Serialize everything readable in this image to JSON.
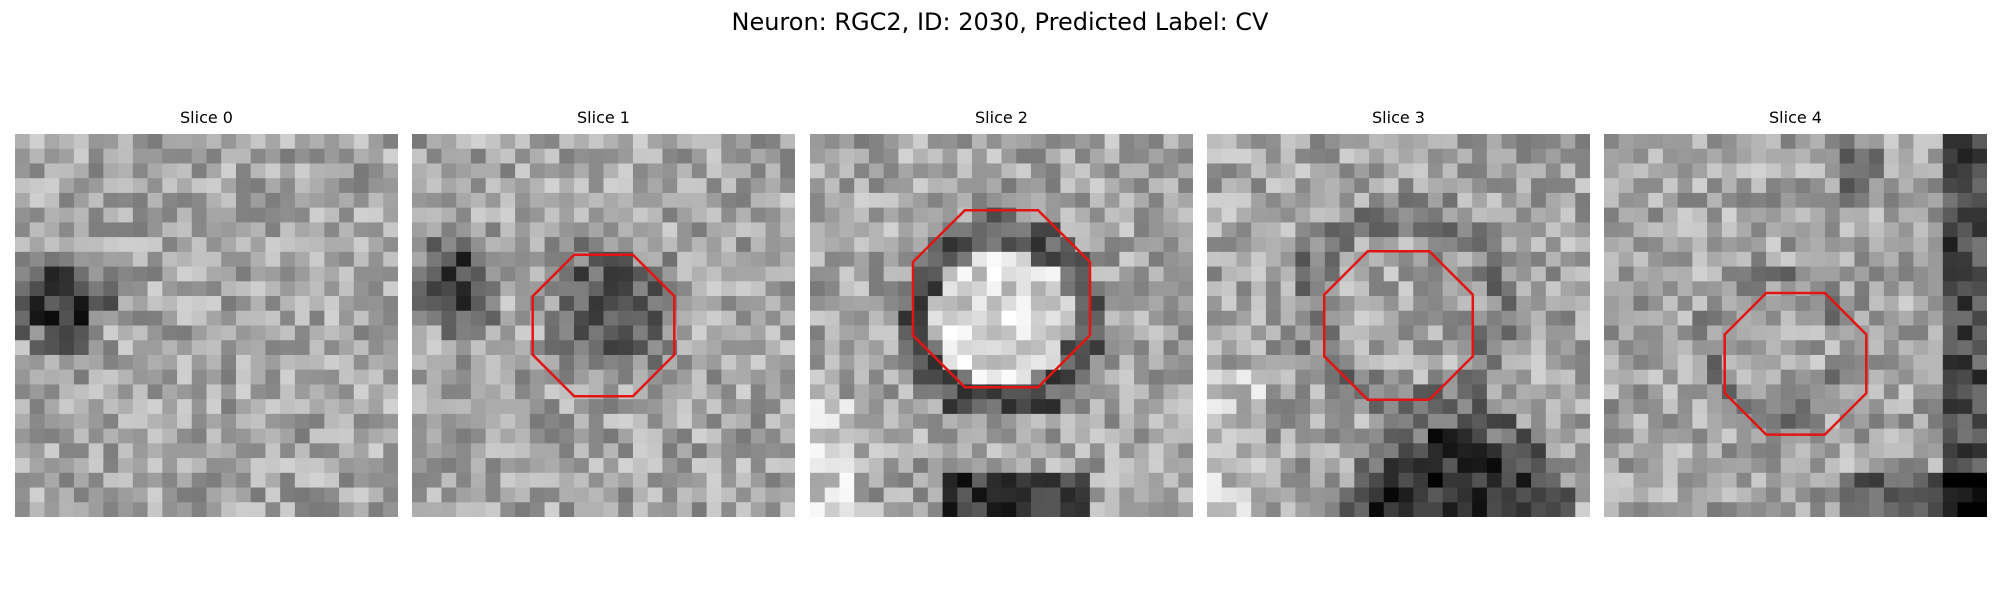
{
  "figure": {
    "title": "Neuron: RGC2, ID: 2030, Predicted Label: CV"
  },
  "colors": {
    "outline": "#e31414",
    "background": "#ffffff"
  },
  "panels": [
    {
      "title": "Slice 0"
    },
    {
      "title": "Slice 1"
    },
    {
      "title": "Slice 2"
    },
    {
      "title": "Slice 3"
    },
    {
      "title": "Slice 4"
    }
  ]
}
